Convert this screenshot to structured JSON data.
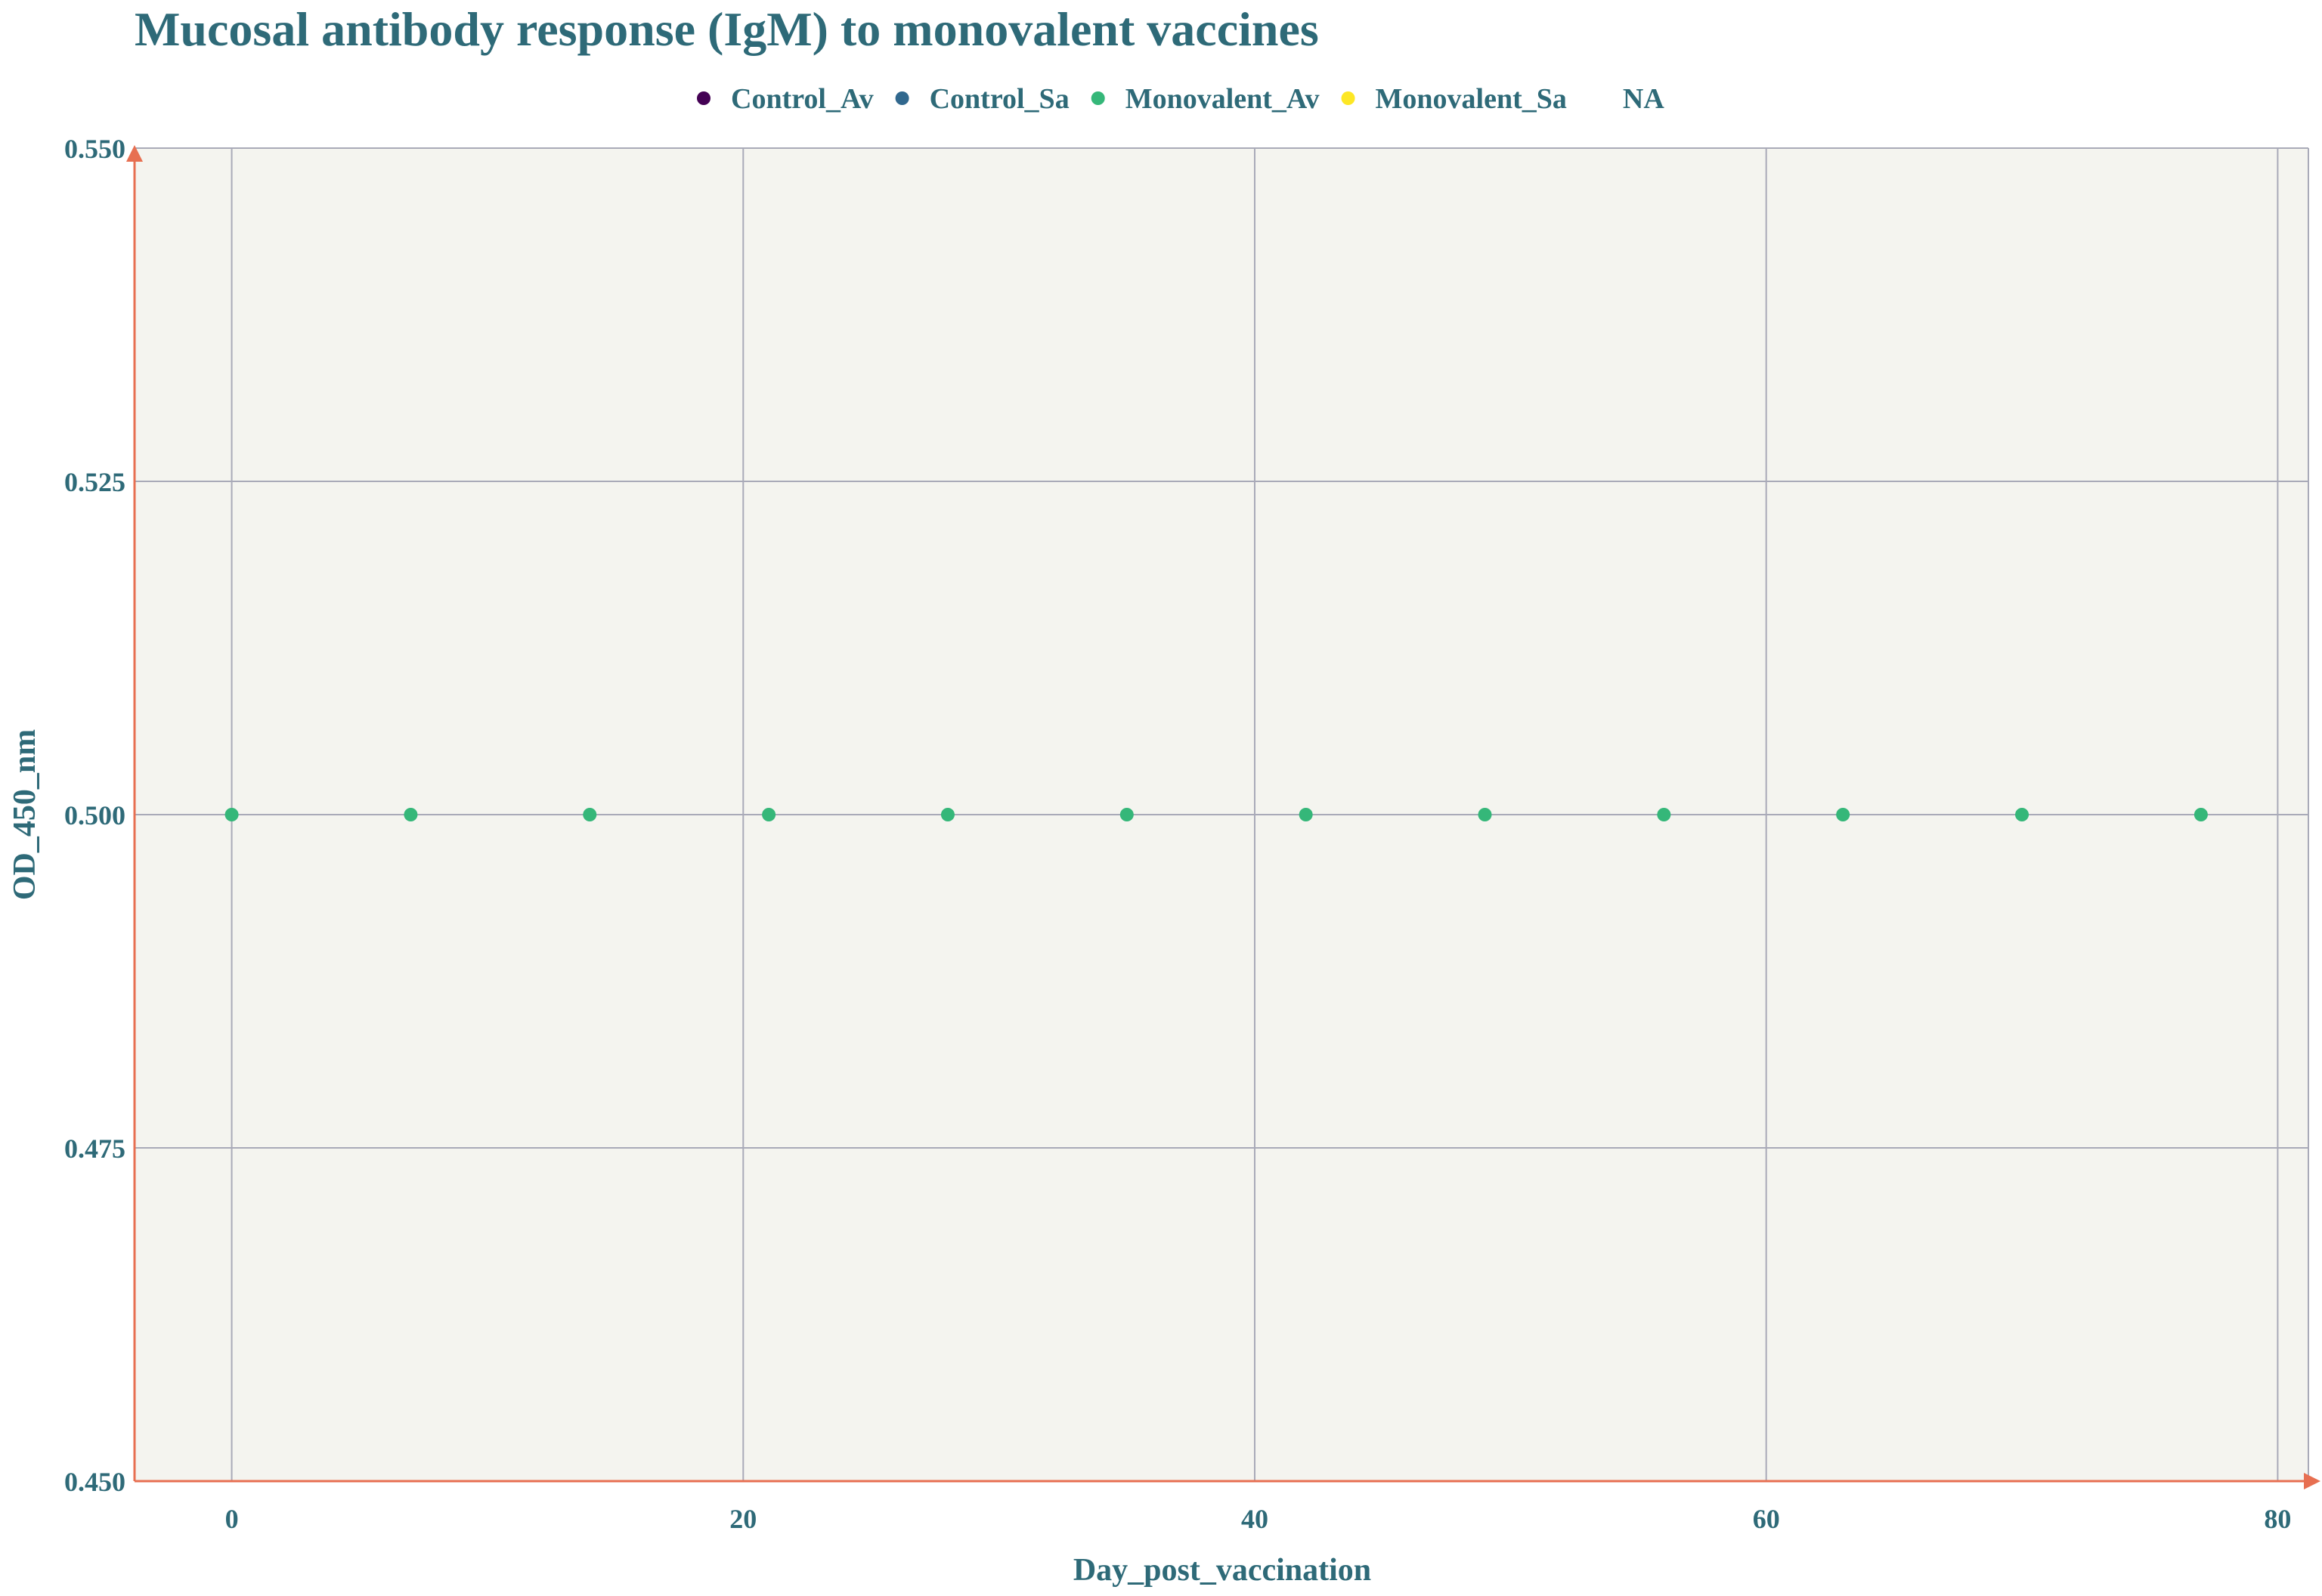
{
  "colors": {
    "text": "#2e6a78",
    "axis": "#e76f51",
    "grid": "#a9aab8",
    "plot_bg": "#f4f4ef",
    "page_bg": "#ffffff"
  },
  "chart_data": {
    "type": "scatter",
    "title": "Mucosal antibody response (IgM) to monovalent vaccines",
    "xlabel": "Day_post_vaccination",
    "ylabel": "OD_450_nm",
    "xlim": [
      -3.8,
      81.2
    ],
    "ylim": [
      0.45,
      0.55
    ],
    "x_ticks": [
      0,
      20,
      40,
      60,
      80
    ],
    "x_tick_labels": [
      "0",
      "20",
      "40",
      "60",
      "80"
    ],
    "y_ticks": [
      0.45,
      0.475,
      0.5,
      0.525,
      0.55
    ],
    "y_tick_labels": [
      "0.450",
      "0.475",
      "0.500",
      "0.525",
      "0.550"
    ],
    "grid": true,
    "legend_position": "top-center",
    "legend": [
      {
        "name": "Control_Av",
        "color": "#440154"
      },
      {
        "name": "Control_Sa",
        "color": "#31688e"
      },
      {
        "name": "Monovalent_Av",
        "color": "#35b779"
      },
      {
        "name": "Monovalent_Sa",
        "color": "#fde725"
      },
      {
        "name": "NA",
        "color": ""
      }
    ],
    "series": [
      {
        "name": "Monovalent_Av",
        "color": "#35b779",
        "x": [
          0,
          7,
          14,
          21,
          28,
          35,
          42,
          49,
          56,
          63,
          70,
          77
        ],
        "y": [
          0.5,
          0.5,
          0.5,
          0.5,
          0.5,
          0.5,
          0.5,
          0.5,
          0.5,
          0.5,
          0.5,
          0.5
        ]
      }
    ]
  }
}
